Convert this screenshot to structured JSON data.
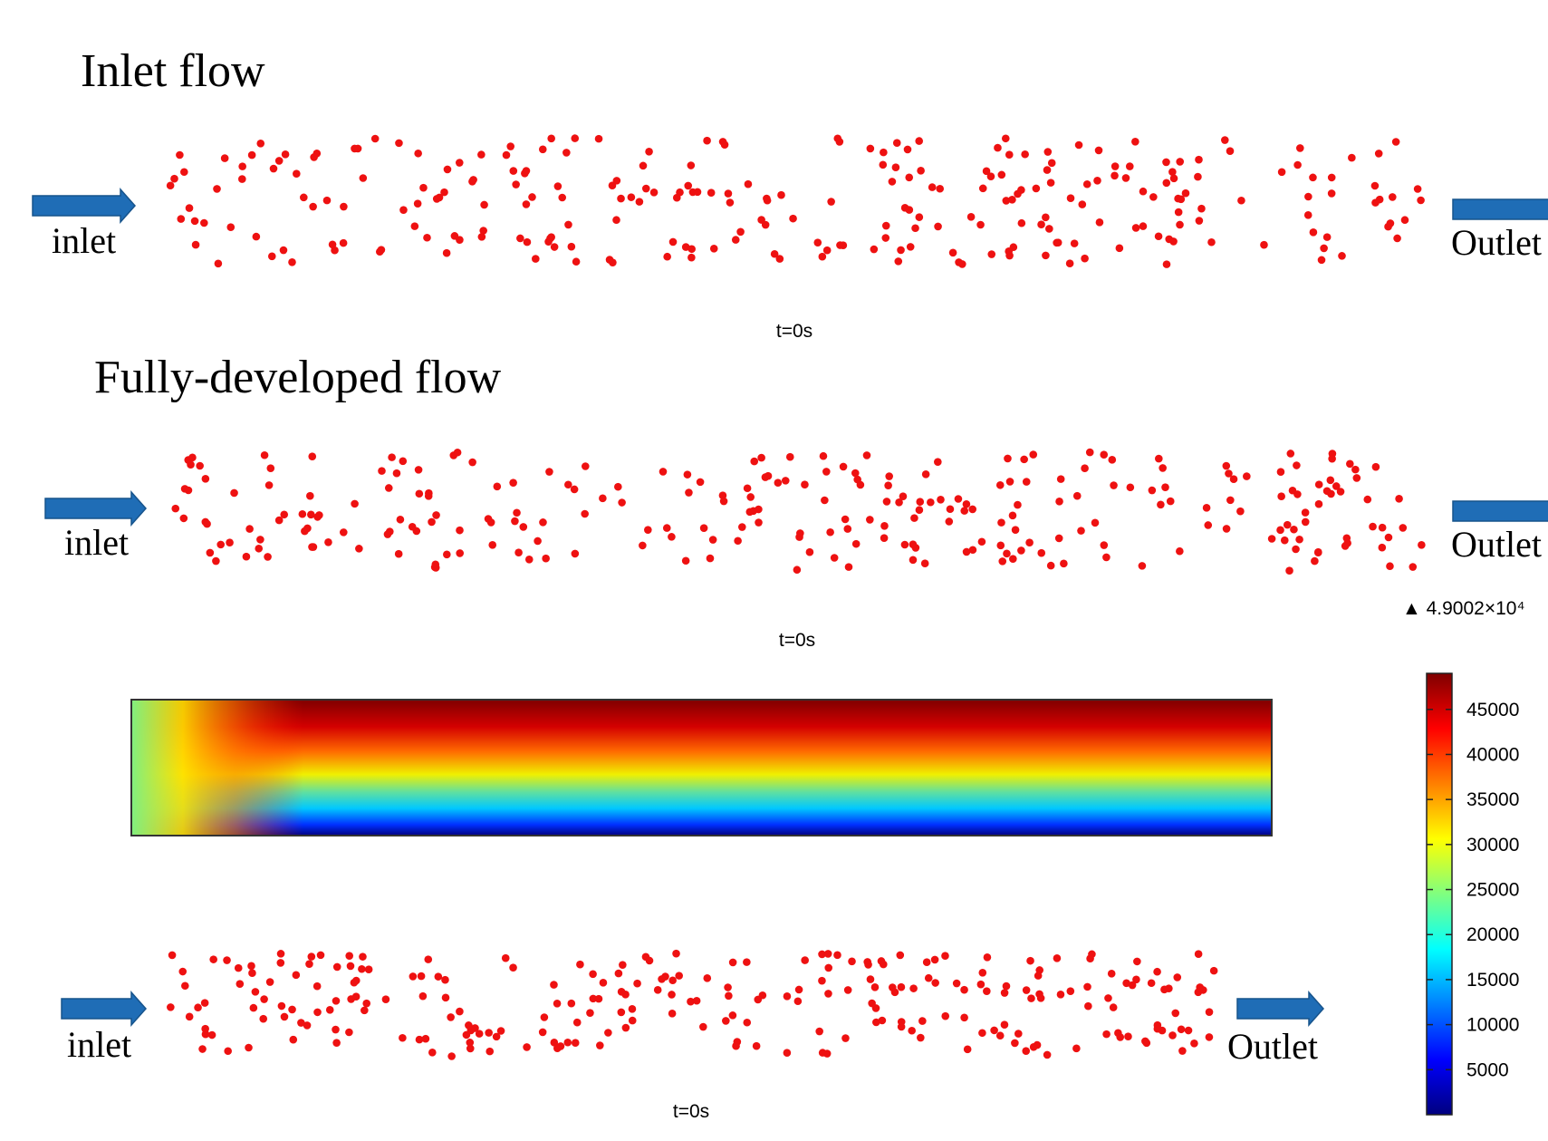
{
  "sections": [
    {
      "title": "Inlet flow",
      "inlet": "inlet",
      "outlet": "Outlet",
      "time": "t=0s"
    },
    {
      "title": "Fully-developed flow",
      "inlet": "inlet",
      "outlet": "Outlet",
      "time": "t=0s"
    },
    {
      "inlet": "inlet",
      "outlet": "Outlet",
      "time": "t=0s"
    }
  ],
  "colorbar": {
    "max_label": "▲ 4.9002×10⁴",
    "range": [
      0,
      49002
    ],
    "ticks": [
      5000,
      10000,
      15000,
      20000,
      25000,
      30000,
      35000,
      40000,
      45000
    ]
  }
}
